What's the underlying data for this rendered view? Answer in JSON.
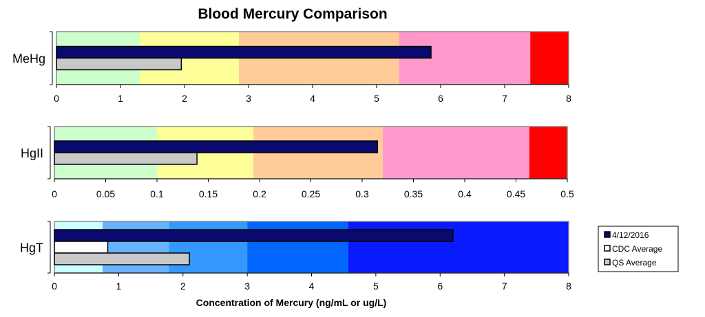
{
  "chart_data": {
    "type": "bar",
    "title": "Blood Mercury Comparison",
    "xlabel": "Concentration of Mercury (ng/mL or ug/L)",
    "legend": {
      "placement": "right",
      "entries": [
        {
          "label": "4/12/2016",
          "color": "#0a0a6e"
        },
        {
          "label": "CDC Average",
          "color": "#ffffff"
        },
        {
          "label": "QS Average",
          "color": "#c8c8c8"
        }
      ]
    },
    "panels": [
      {
        "category": "MeHg",
        "xlim": [
          0,
          8
        ],
        "ticks": [
          "0",
          "1",
          "2",
          "3",
          "4",
          "5",
          "6",
          "7",
          "8"
        ],
        "bands": [
          {
            "from": 0,
            "to": 1.3,
            "color": "#ccffcc"
          },
          {
            "from": 1.3,
            "to": 2.85,
            "color": "#ffff99"
          },
          {
            "from": 2.85,
            "to": 5.35,
            "color": "#ffcc99"
          },
          {
            "from": 5.35,
            "to": 7.4,
            "color": "#ff99cc"
          },
          {
            "from": 7.4,
            "to": 8,
            "color": "#ff0000"
          }
        ],
        "series": [
          {
            "name": "4/12/2016",
            "value": 5.85
          },
          {
            "name": "QS Average",
            "value": 1.95
          }
        ]
      },
      {
        "category": "HgII",
        "xlim": [
          0,
          0.5
        ],
        "ticks": [
          "0",
          "0.05",
          "0.1",
          "0.15",
          "0.2",
          "0.25",
          "0.3",
          "0.35",
          "0.4",
          "0.45",
          "0.5"
        ],
        "bands": [
          {
            "from": 0,
            "to": 0.1,
            "color": "#ccffcc"
          },
          {
            "from": 0.1,
            "to": 0.194,
            "color": "#ffff99"
          },
          {
            "from": 0.194,
            "to": 0.32,
            "color": "#ffcc99"
          },
          {
            "from": 0.32,
            "to": 0.463,
            "color": "#ff99cc"
          },
          {
            "from": 0.463,
            "to": 0.5,
            "color": "#ff0000"
          }
        ],
        "series": [
          {
            "name": "4/12/2016",
            "value": 0.315
          },
          {
            "name": "QS Average",
            "value": 0.139
          }
        ]
      },
      {
        "category": "HgT",
        "xlim": [
          0,
          8
        ],
        "ticks": [
          "0",
          "1",
          "2",
          "3",
          "4",
          "5",
          "6",
          "7",
          "8"
        ],
        "bands": [
          {
            "from": 0,
            "to": 0.75,
            "color": "#ccffff"
          },
          {
            "from": 0.75,
            "to": 1.78,
            "color": "#66b3ff"
          },
          {
            "from": 1.78,
            "to": 3.0,
            "color": "#3399ff"
          },
          {
            "from": 3.0,
            "to": 4.57,
            "color": "#0066ff"
          },
          {
            "from": 4.57,
            "to": 8,
            "color": "#0a1aff"
          }
        ],
        "series": [
          {
            "name": "4/12/2016",
            "value": 6.2
          },
          {
            "name": "CDC Average",
            "value": 0.83
          },
          {
            "name": "QS Average",
            "value": 2.1
          }
        ]
      }
    ]
  }
}
